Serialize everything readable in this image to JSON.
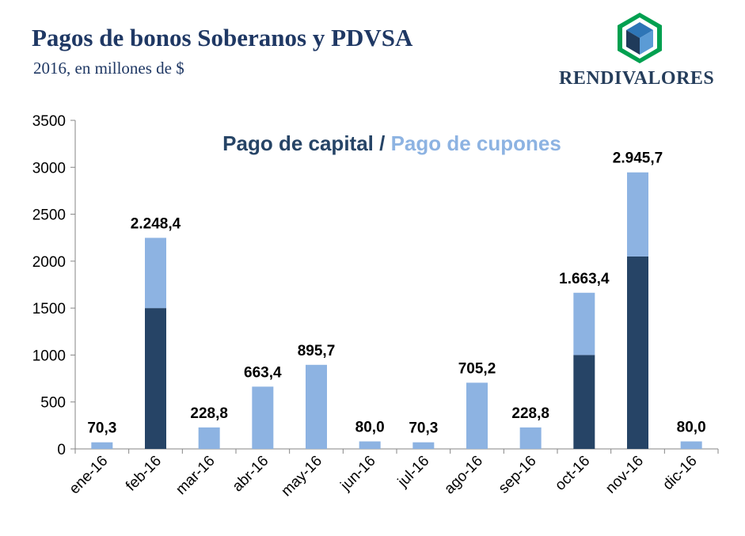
{
  "header": {
    "title": "Pagos de bonos Soberanos y PDVSA",
    "subtitle": "2016, en millones de $",
    "brand": "RENDIVALORES"
  },
  "colors": {
    "capital": "#264466",
    "cupones": "#8db3e2",
    "title": "#1f3864",
    "logo_green": "#00a050",
    "logo_blue": "#2e75b6",
    "logo_dark": "#1f3a5a"
  },
  "chart_data": {
    "type": "bar",
    "stacked": true,
    "legend_title": {
      "capital": "Pago de capital",
      "separator": " / ",
      "cupones": "Pago de cupones"
    },
    "categories": [
      "ene-16",
      "feb-16",
      "mar-16",
      "abr-16",
      "may-16",
      "jun-16",
      "jul-16",
      "ago-16",
      "sep-16",
      "oct-16",
      "nov-16",
      "dic-16"
    ],
    "series": [
      {
        "name": "Pago de capital",
        "values": [
          0,
          1500,
          0,
          0,
          0,
          0,
          0,
          0,
          0,
          1000,
          2050,
          0
        ]
      },
      {
        "name": "Pago de cupones",
        "values": [
          70.3,
          748.4,
          228.8,
          663.4,
          895.7,
          80.0,
          70.3,
          705.2,
          228.8,
          663.4,
          895.7,
          80.0
        ]
      }
    ],
    "totals": [
      70.3,
      2248.4,
      228.8,
      663.4,
      895.7,
      80.0,
      70.3,
      705.2,
      228.8,
      1663.4,
      2945.7,
      80.0
    ],
    "total_labels": [
      "70,3",
      "2.248,4",
      "228,8",
      "663,4",
      "895,7",
      "80,0",
      "70,3",
      "705,2",
      "228,8",
      "1.663,4",
      "2.945,7",
      "80,0"
    ],
    "yticks": [
      0,
      500,
      1000,
      1500,
      2000,
      2500,
      3000,
      3500
    ],
    "ylim": [
      0,
      3500
    ],
    "grid": false
  }
}
